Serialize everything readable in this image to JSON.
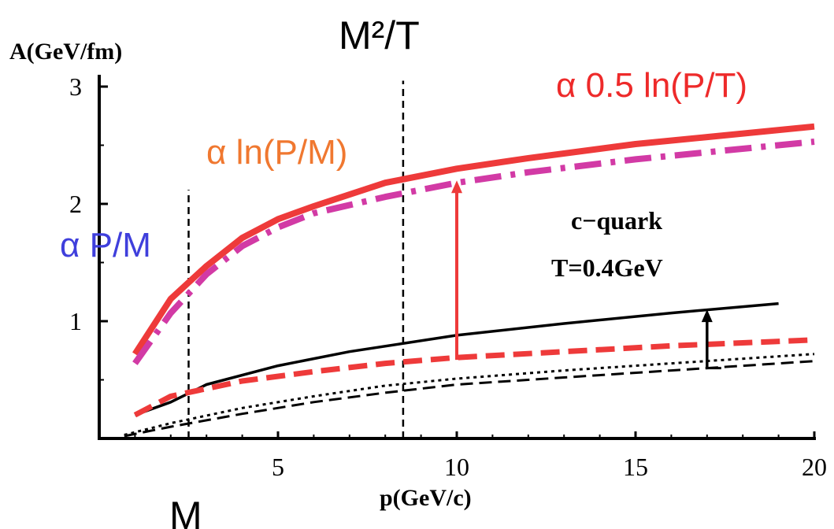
{
  "chart_data": {
    "type": "line",
    "ylabel": "A(GeV/fm)",
    "xlabel": "p(GeV/c)",
    "xlim": [
      0,
      20
    ],
    "ylim": [
      0,
      3
    ],
    "x_ticks": [
      5,
      10,
      15,
      20
    ],
    "y_ticks": [
      1,
      2,
      3
    ],
    "x_tick_labels": [
      "5",
      "10",
      "15",
      "20"
    ],
    "y_tick_labels": [
      "1",
      "2",
      "3"
    ],
    "grid": false,
    "series": [
      {
        "style": "thick-solid",
        "color": "#ee3a3a",
        "x": [
          1,
          2,
          3,
          4,
          5,
          6,
          8,
          10,
          12,
          15,
          17,
          20
        ],
        "y": [
          0.72,
          1.19,
          1.47,
          1.71,
          1.87,
          1.98,
          2.18,
          2.3,
          2.39,
          2.51,
          2.57,
          2.66
        ]
      },
      {
        "style": "thick-dashdot",
        "color": "#d23aa5",
        "x": [
          1,
          2,
          3,
          4,
          5,
          6,
          8,
          10,
          12,
          15,
          17,
          20
        ],
        "y": [
          0.64,
          1.07,
          1.4,
          1.64,
          1.8,
          1.92,
          2.06,
          2.18,
          2.27,
          2.38,
          2.44,
          2.53
        ]
      },
      {
        "style": "thin-solid",
        "color": "#000000",
        "x": [
          1,
          2,
          3,
          5,
          7,
          10,
          13,
          16,
          19
        ],
        "y": [
          0.2,
          0.31,
          0.46,
          0.62,
          0.74,
          0.88,
          0.98,
          1.07,
          1.15
        ]
      },
      {
        "style": "thick-dashed",
        "color": "#ee3a3a",
        "x": [
          1,
          2,
          4,
          6,
          8,
          10,
          13,
          16,
          20
        ],
        "y": [
          0.2,
          0.36,
          0.49,
          0.57,
          0.64,
          0.69,
          0.74,
          0.79,
          0.84
        ]
      },
      {
        "style": "dotted",
        "color": "#000000",
        "x": [
          0.7,
          2,
          4,
          6,
          8,
          10,
          13,
          16,
          20
        ],
        "y": [
          0.03,
          0.13,
          0.26,
          0.36,
          0.45,
          0.51,
          0.58,
          0.64,
          0.72
        ]
      },
      {
        "style": "thin-dashed",
        "color": "#000000",
        "x": [
          0.7,
          2,
          4,
          6,
          8,
          10,
          13,
          16,
          20
        ],
        "y": [
          0.02,
          0.1,
          0.21,
          0.31,
          0.39,
          0.46,
          0.52,
          0.58,
          0.66
        ]
      }
    ],
    "vlines": [
      {
        "x": 2.5,
        "y_top": 2.12,
        "label": "M"
      },
      {
        "x": 8.5,
        "y_top": 3.05,
        "label": "M²/T"
      }
    ],
    "arrows": [
      {
        "color": "#ee3a3a",
        "x": 10,
        "y_from": 0.67,
        "y_to": 2.2
      },
      {
        "color": "#000000",
        "x": 17,
        "y_from": 0.6,
        "y_to": 1.1
      }
    ],
    "annotations": {
      "alpha_pm": "α P/M",
      "alpha_lnpm": "α ln(P/M)",
      "alpha_lnpt": "α 0.5 ln(P/T)",
      "cquark": "c−quark",
      "temperature": "T=0.4GeV"
    },
    "colors": {
      "blue": "#3f3fdc",
      "orange": "#f07830",
      "red": "#ee2a2a"
    }
  }
}
